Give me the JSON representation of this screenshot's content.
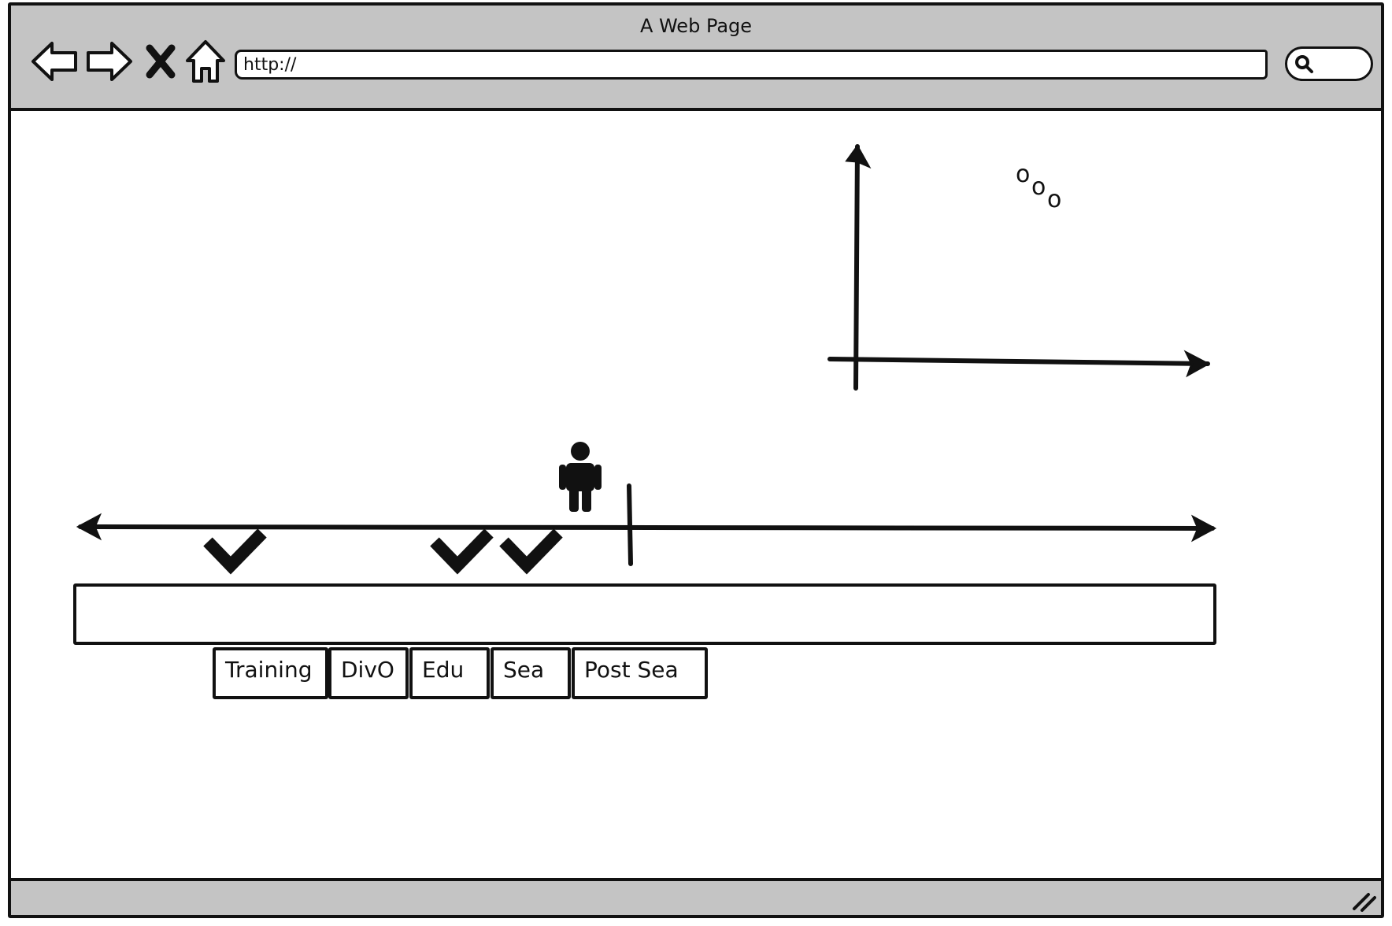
{
  "window": {
    "title": "A Web Page"
  },
  "toolbar": {
    "back_icon": "back-arrow-icon",
    "forward_icon": "forward-arrow-icon",
    "stop_icon": "close-icon",
    "home_icon": "home-icon",
    "address_value": "http://",
    "search_icon": "search-icon"
  },
  "chart": {
    "glyphs": [
      "o",
      "o",
      "o"
    ]
  },
  "timeline": {
    "checkmarks": 3,
    "person_icon": "person-icon",
    "tabs": [
      {
        "label": "Training"
      },
      {
        "label": "DivO"
      },
      {
        "label": "Edu"
      },
      {
        "label": "Sea"
      },
      {
        "label": "Post Sea"
      }
    ]
  },
  "colors": {
    "chrome": "#c4c4c4",
    "ink": "#111111",
    "paper": "#ffffff"
  }
}
